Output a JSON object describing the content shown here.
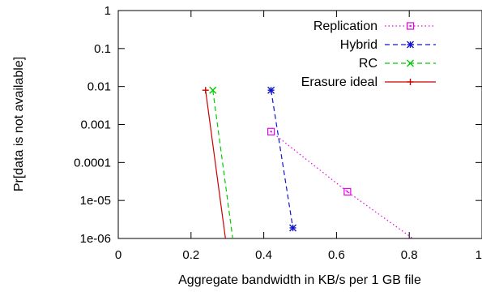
{
  "chart_data": {
    "type": "line",
    "xlabel": "Aggregate bandwidth in KB/s per 1 GB file",
    "ylabel": "Pr[data is not available]",
    "xlim": [
      0,
      1
    ],
    "ylim": [
      1e-06,
      1
    ],
    "y_scale": "log",
    "grid": false,
    "legend_position": "top-right",
    "x_ticks": [
      {
        "value": 0,
        "label": "0"
      },
      {
        "value": 0.2,
        "label": "0.2"
      },
      {
        "value": 0.4,
        "label": "0.4"
      },
      {
        "value": 0.6,
        "label": "0.6"
      },
      {
        "value": 0.8,
        "label": "0.8"
      },
      {
        "value": 1,
        "label": "1"
      }
    ],
    "y_ticks": [
      {
        "value": 1,
        "label": "1"
      },
      {
        "value": 0.1,
        "label": "0.1"
      },
      {
        "value": 0.01,
        "label": "0.01"
      },
      {
        "value": 0.001,
        "label": "0.001"
      },
      {
        "value": 0.0001,
        "label": "0.0001"
      },
      {
        "value": 1e-05,
        "label": "1e-05"
      },
      {
        "value": 1e-06,
        "label": "1e-06"
      }
    ],
    "series": [
      {
        "name": "Replication",
        "color": "#e600e6",
        "line_style": "dotted",
        "marker": "square",
        "x": [
          0.42,
          0.63,
          0.82
        ],
        "y": [
          0.00065,
          1.7e-05,
          8.5e-07
        ],
        "markers_at": [
          0,
          1
        ]
      },
      {
        "name": "Hybrid",
        "color": "#1414d0",
        "line_style": "dashed",
        "marker": "asterisk",
        "x": [
          0.42,
          0.48
        ],
        "y": [
          0.008,
          1.9e-06
        ],
        "markers_at": [
          0,
          1
        ]
      },
      {
        "name": "RC",
        "color": "#00cc00",
        "line_style": "dashed",
        "marker": "x",
        "x": [
          0.26,
          0.315
        ],
        "y": [
          0.008,
          9.5e-07
        ],
        "markers_at": [
          0
        ]
      },
      {
        "name": "Erasure ideal",
        "color": "#cc0000",
        "line_style": "solid",
        "marker": "plus",
        "x": [
          0.24,
          0.295
        ],
        "y": [
          0.008,
          9.5e-07
        ],
        "markers_at": [
          0
        ]
      }
    ]
  }
}
